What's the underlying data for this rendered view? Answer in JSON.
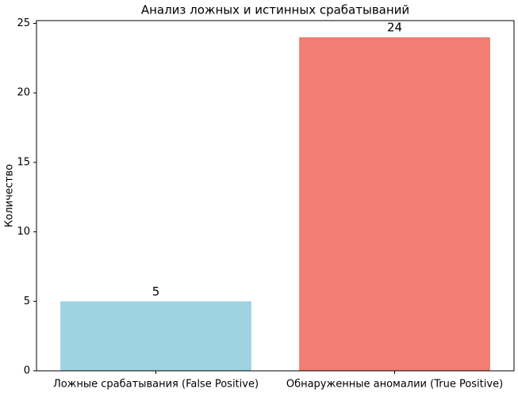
{
  "chart_data": {
    "type": "bar",
    "title": "Анализ ложных и истинных срабатываний",
    "y_label": "Количество",
    "categories": [
      "Ложные срабатывания (False Positive)",
      "Обнаруженные аномалии (True Positive)"
    ],
    "values": [
      5,
      24
    ],
    "colors": [
      "#9fd3e4",
      "#f07e72"
    ],
    "ylim": [
      0,
      25.2
    ],
    "yticks": [
      0,
      5,
      10,
      15,
      20,
      25
    ],
    "grid": false
  }
}
